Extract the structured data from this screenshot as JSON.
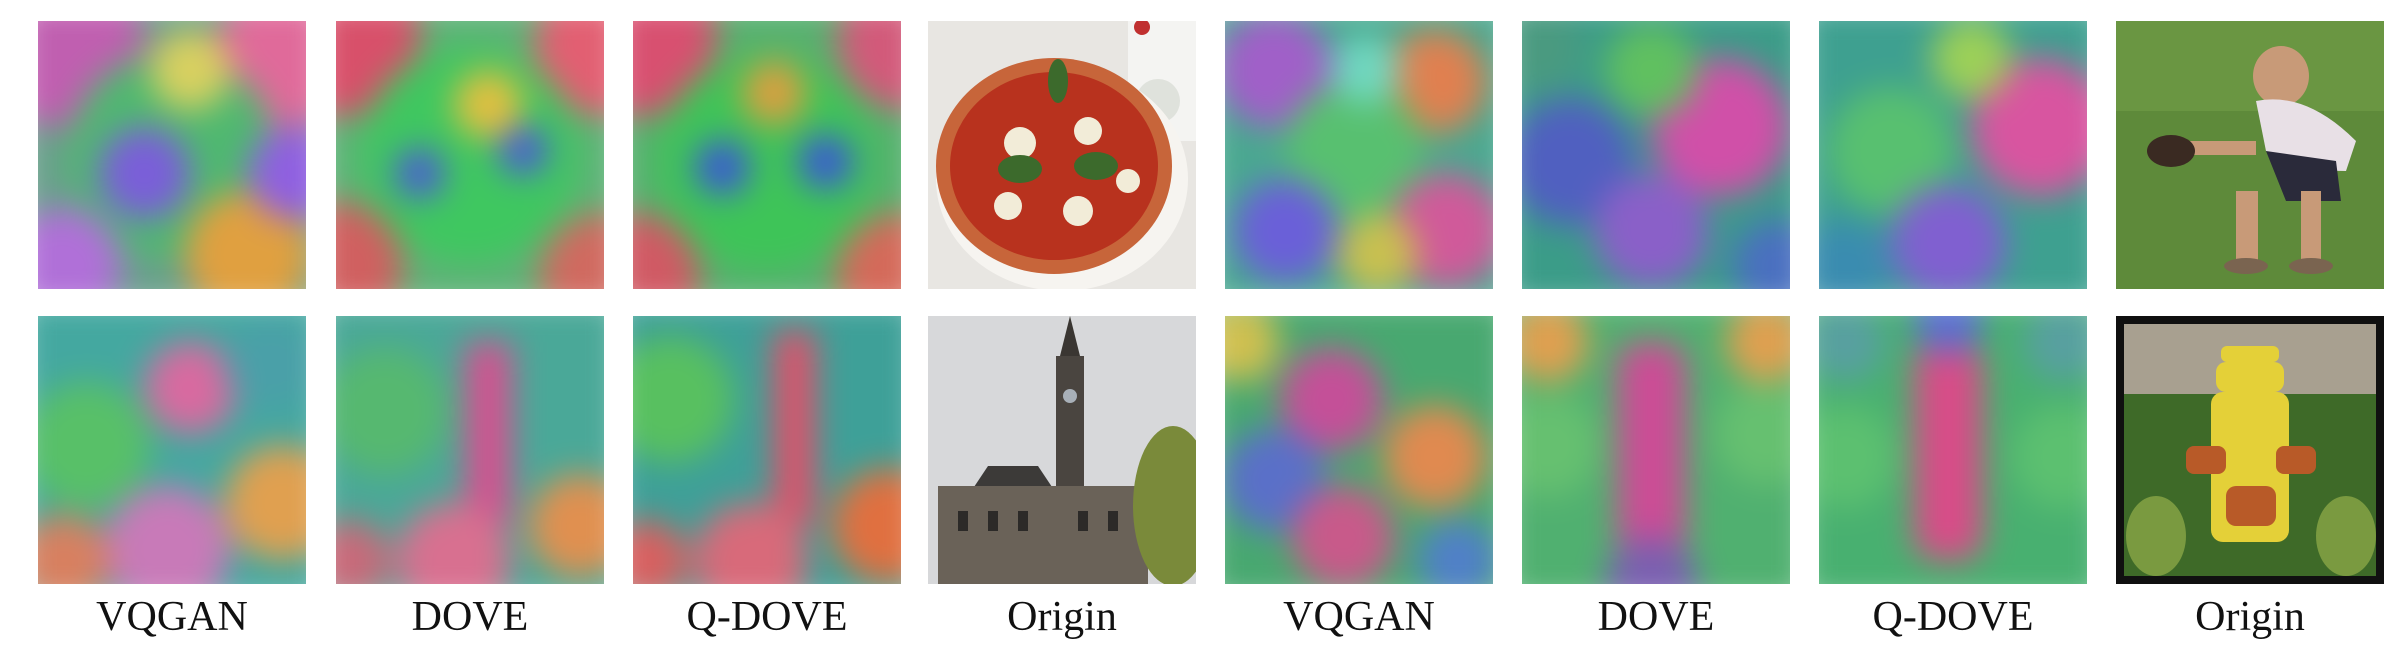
{
  "figure": {
    "column_labels": [
      "VQGAN",
      "DOVE",
      "Q-DOVE",
      "Origin",
      "VQGAN",
      "DOVE",
      "Q-DOVE",
      "Origin"
    ],
    "rows": [
      {
        "images": [
          {
            "kind": "feature-map",
            "method": "VQGAN",
            "palette": [
              "#c05fb0",
              "#4fb870",
              "#7a5fd8",
              "#e0a040"
            ]
          },
          {
            "kind": "feature-map",
            "method": "DOVE",
            "palette": [
              "#d8506a",
              "#3fc760",
              "#4a60d0",
              "#e0c040"
            ]
          },
          {
            "kind": "feature-map",
            "method": "Q-DOVE",
            "palette": [
              "#d85070",
              "#3ec458",
              "#3a5cd0",
              "#d8a040"
            ]
          },
          {
            "kind": "photo",
            "subject": "pizza",
            "colors": [
              "#e8e6e2",
              "#c7653a",
              "#b8321e",
              "#3c6a2c",
              "#f2ecd8"
            ]
          }
        ]
      },
      {
        "images": [
          {
            "kind": "feature-map",
            "method": "VQGAN",
            "palette": [
              "#44a8a0",
              "#d86aa0",
              "#58c068",
              "#e0a050"
            ]
          },
          {
            "kind": "feature-map",
            "method": "DOVE",
            "palette": [
              "#4aa898",
              "#d65090",
              "#56b870",
              "#e09050"
            ]
          },
          {
            "kind": "feature-map",
            "method": "Q-DOVE",
            "palette": [
              "#3ea098",
              "#e0506a",
              "#58c060",
              "#e07040"
            ]
          },
          {
            "kind": "photo",
            "subject": "clock tower",
            "colors": [
              "#d7d8da",
              "#4a4540",
              "#6a6258",
              "#7a8a3a",
              "#2c2a28"
            ]
          }
        ]
      }
    ],
    "rows_right": [
      {
        "images": [
          {
            "kind": "feature-map",
            "method": "VQGAN",
            "palette": [
              "#4aa890",
              "#a060c8",
              "#58c070",
              "#e08050"
            ]
          },
          {
            "kind": "feature-map",
            "method": "DOVE",
            "palette": [
              "#3b9c88",
              "#d050a8",
              "#5060c0",
              "#60c060"
            ]
          },
          {
            "kind": "feature-map",
            "method": "Q-DOVE",
            "palette": [
              "#3ea090",
              "#d855a0",
              "#58c070",
              "#8060d0"
            ]
          },
          {
            "kind": "photo",
            "subject": "boy with glove on grass",
            "colors": [
              "#5e8a3a",
              "#e8e0e6",
              "#2a2a3a",
              "#c89a78",
              "#7a9a48"
            ]
          }
        ]
      },
      {
        "images": [
          {
            "kind": "feature-map",
            "method": "VQGAN",
            "palette": [
              "#48a870",
              "#c45098",
              "#5a70c8",
              "#e08a50"
            ]
          },
          {
            "kind": "feature-map",
            "method": "DOVE",
            "palette": [
              "#50b070",
              "#cc4c96",
              "#66c070",
              "#e0a050"
            ]
          },
          {
            "kind": "feature-map",
            "method": "Q-DOVE",
            "palette": [
              "#48b070",
              "#d84c88",
              "#5cc070",
              "#5a70d0"
            ]
          },
          {
            "kind": "photo",
            "subject": "yellow fire hydrant",
            "colors": [
              "#101010",
              "#e4d038",
              "#b85a28",
              "#3e6a28",
              "#7a9a40"
            ]
          }
        ]
      }
    ]
  }
}
